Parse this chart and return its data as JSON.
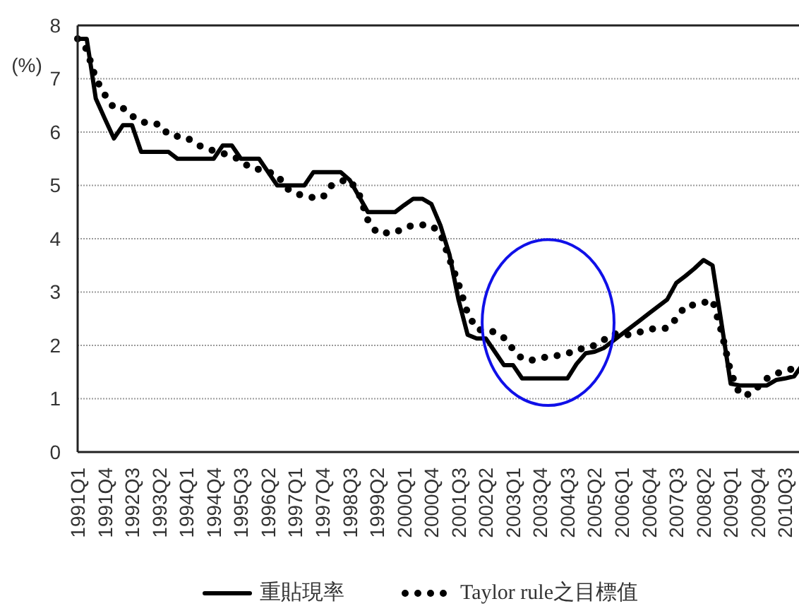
{
  "chart_data": {
    "type": "line",
    "ylabel": "(%)",
    "categories": [
      "1991Q1",
      null,
      null,
      "1991Q4",
      null,
      null,
      "1992Q3",
      null,
      null,
      "1993Q2",
      null,
      null,
      "1994Q1",
      null,
      null,
      "1994Q4",
      null,
      null,
      "1995Q3",
      null,
      null,
      "1996Q2",
      null,
      null,
      "1997Q1",
      null,
      null,
      "1997Q4",
      null,
      null,
      "1998Q3",
      null,
      null,
      "1999Q2",
      null,
      null,
      "2000Q1",
      null,
      null,
      "2000Q4",
      null,
      null,
      "2001Q3",
      null,
      null,
      "2002Q2",
      null,
      null,
      "2003Q1",
      null,
      null,
      "2003Q4",
      null,
      null,
      "2004Q3",
      null,
      null,
      "2005Q2",
      null,
      null,
      "2006Q1",
      null,
      null,
      "2006Q4",
      null,
      null,
      "2007Q3",
      null,
      null,
      "2008Q2",
      null,
      null,
      "2009Q1",
      null,
      null,
      "2009Q4",
      null,
      null,
      "2010Q3",
      null,
      null
    ],
    "series": [
      {
        "name": "重貼現率",
        "color": "#000000",
        "line_style": "solid",
        "values": [
          7.75,
          7.75,
          6.63,
          6.25,
          5.88,
          6.13,
          6.13,
          5.63,
          5.63,
          5.63,
          5.63,
          5.5,
          5.5,
          5.5,
          5.5,
          5.5,
          5.75,
          5.75,
          5.5,
          5.5,
          5.5,
          5.25,
          5.0,
          5.0,
          5.0,
          5.0,
          5.25,
          5.25,
          5.25,
          5.25,
          5.1,
          4.8,
          4.5,
          4.5,
          4.5,
          4.5,
          4.63,
          4.75,
          4.75,
          4.65,
          4.25,
          3.7,
          2.85,
          2.2,
          2.13,
          2.13,
          1.88,
          1.63,
          1.63,
          1.38,
          1.38,
          1.38,
          1.38,
          1.38,
          1.38,
          1.65,
          1.85,
          1.88,
          1.95,
          2.08,
          2.21,
          2.34,
          2.47,
          2.6,
          2.73,
          2.86,
          3.17,
          3.3,
          3.44,
          3.6,
          3.5,
          2.4,
          1.28,
          1.25,
          1.25,
          1.25,
          1.25,
          1.35,
          1.38,
          1.42,
          1.66
        ]
      },
      {
        "name": "Taylor rule之目標值",
        "color": "#000000",
        "line_style": "dotted",
        "values": [
          7.75,
          7.55,
          7.0,
          6.7,
          6.45,
          6.45,
          6.3,
          6.2,
          6.15,
          6.15,
          5.95,
          5.92,
          5.9,
          5.78,
          5.7,
          5.65,
          5.6,
          5.55,
          5.47,
          5.33,
          5.3,
          5.25,
          5.2,
          4.95,
          4.85,
          4.8,
          4.77,
          4.77,
          5.0,
          5.08,
          5.1,
          4.85,
          4.35,
          4.11,
          4.11,
          4.11,
          4.21,
          4.25,
          4.26,
          4.25,
          4.1,
          3.62,
          3.15,
          2.6,
          2.3,
          2.28,
          2.25,
          2.14,
          1.93,
          1.75,
          1.72,
          1.75,
          1.8,
          1.81,
          1.84,
          1.93,
          1.94,
          2.0,
          2.1,
          2.22,
          2.2,
          2.2,
          2.25,
          2.3,
          2.32,
          2.32,
          2.5,
          2.74,
          2.76,
          2.8,
          2.85,
          2.25,
          1.5,
          1.08,
          1.08,
          1.22,
          1.38,
          1.47,
          1.52,
          1.57,
          1.62
        ]
      }
    ],
    "ylim": [
      0,
      8
    ],
    "yticks": [
      0,
      1,
      2,
      3,
      4,
      5,
      6,
      7,
      8
    ],
    "grid": "y",
    "legend": "bottom"
  }
}
